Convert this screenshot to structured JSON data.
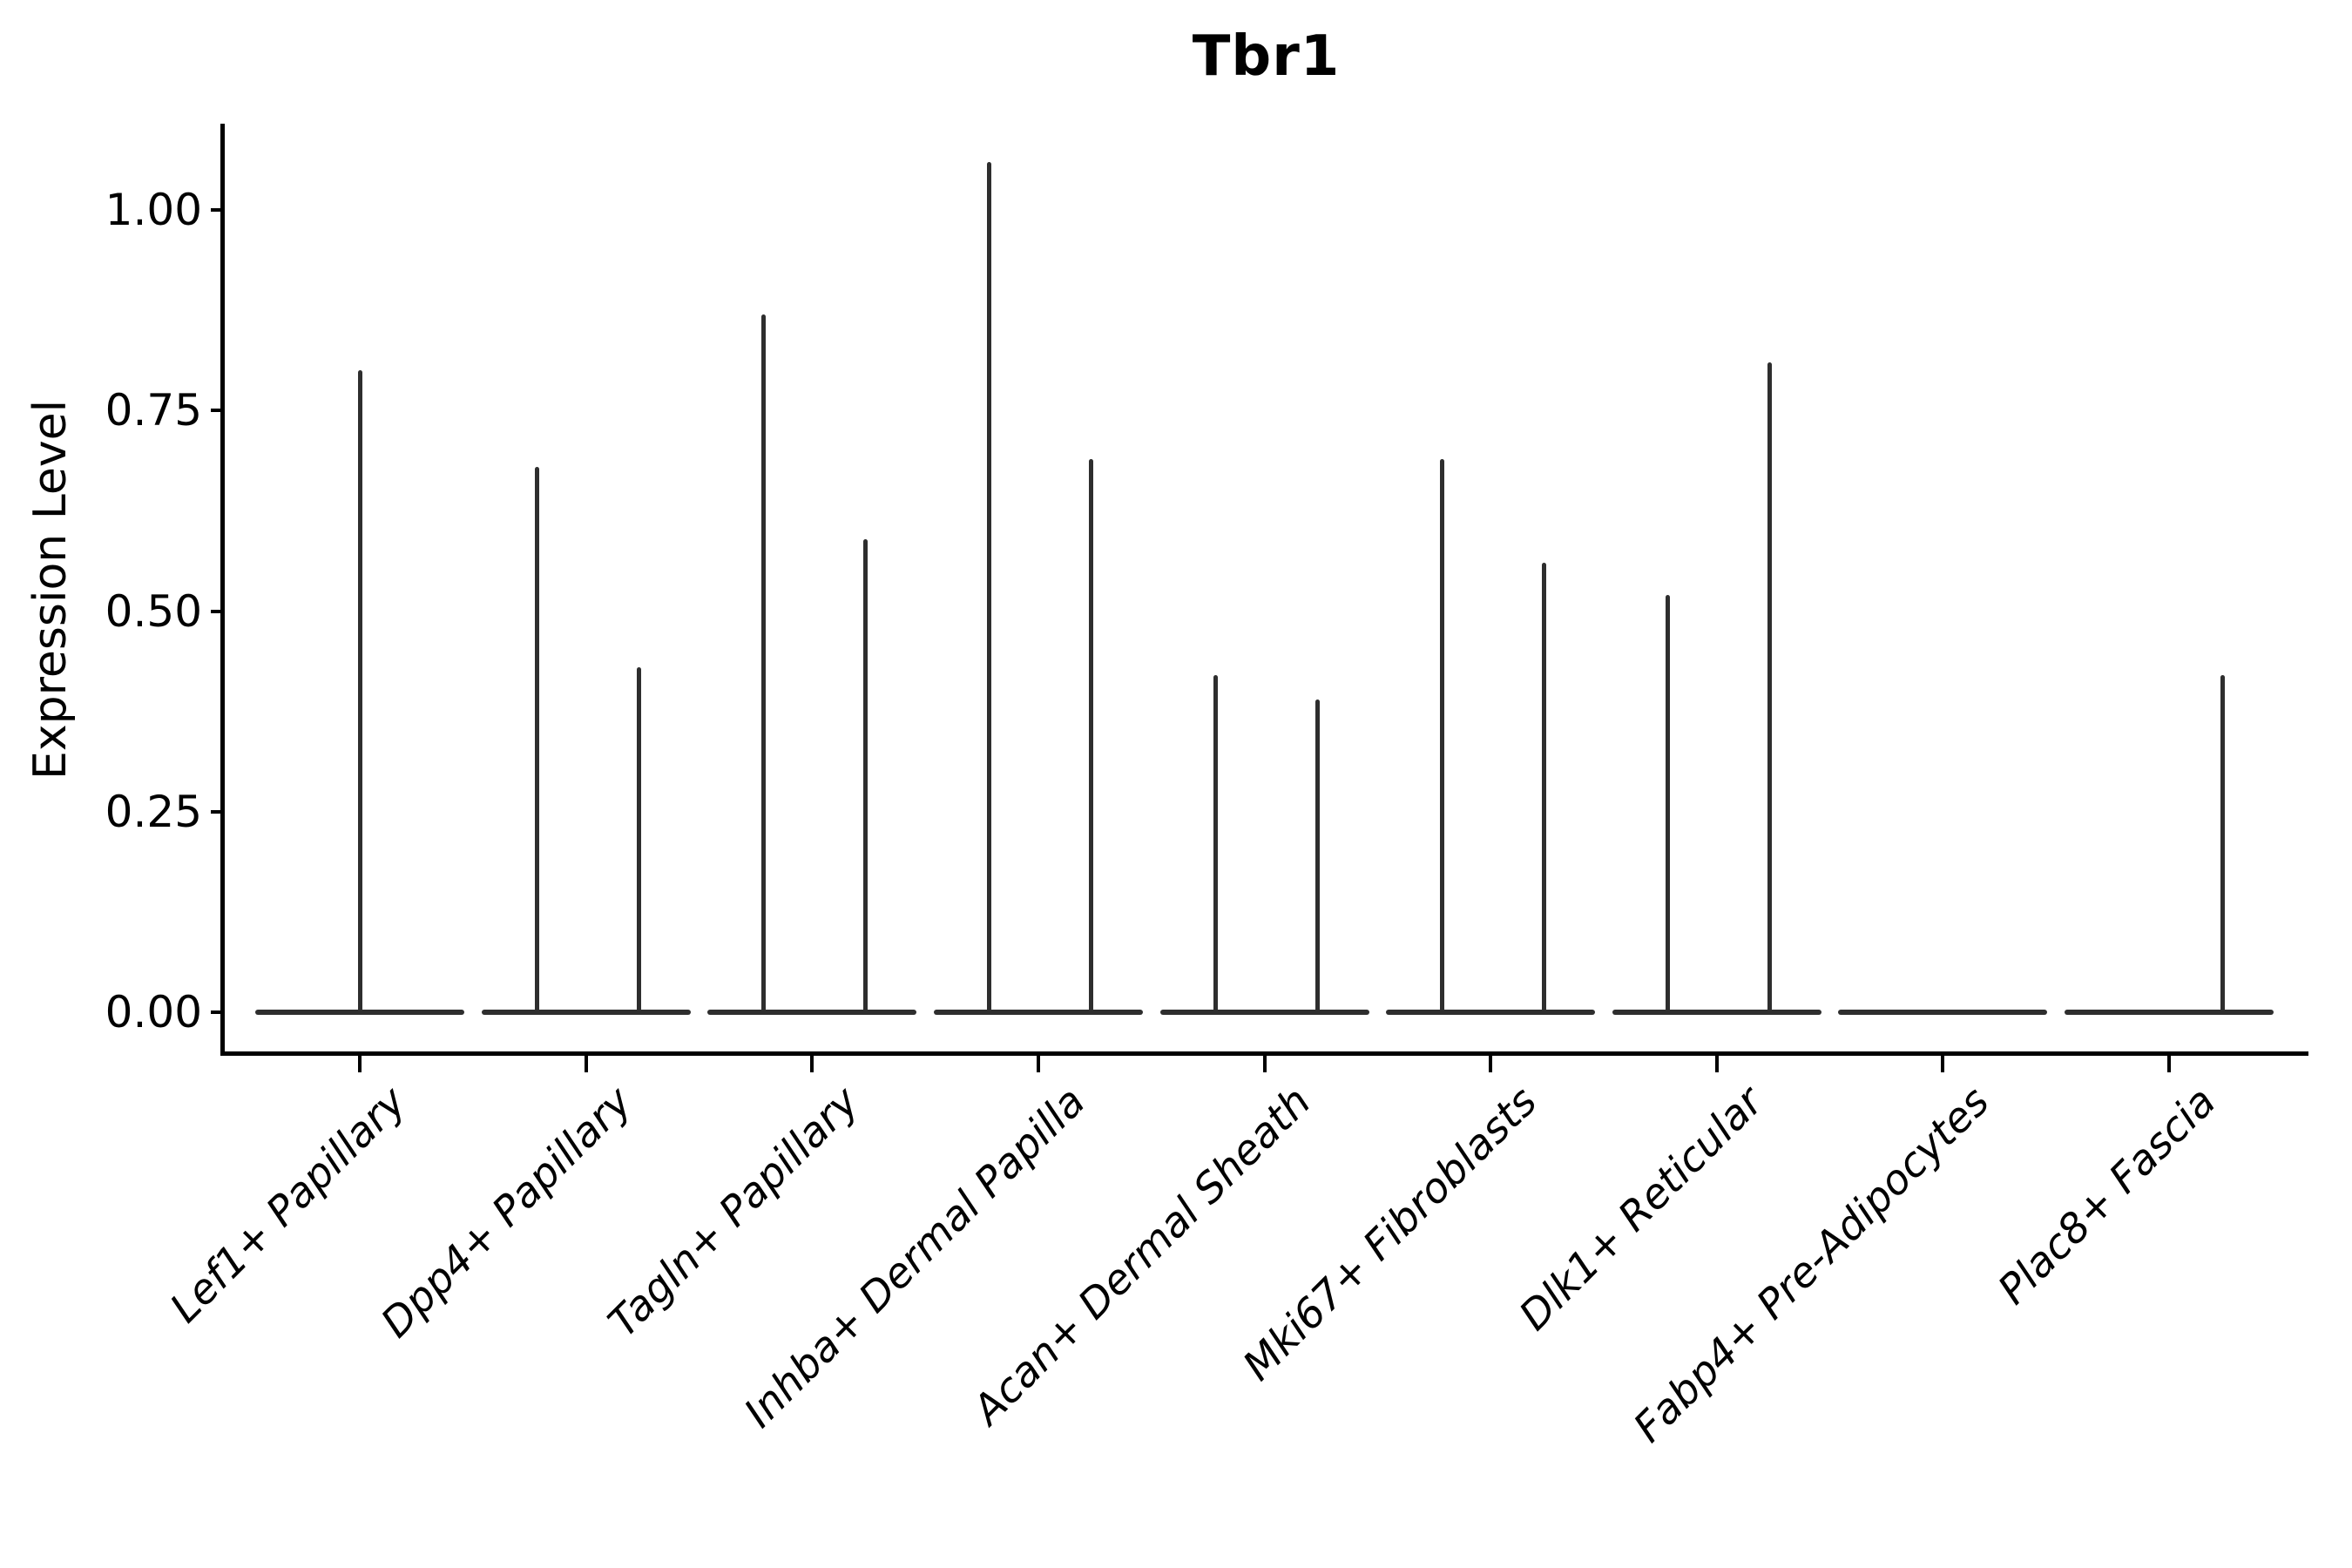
{
  "chart_data": {
    "type": "violin",
    "title": "Tbr1",
    "ylabel": "Expression Level",
    "xlabel": "",
    "y_ticks": [
      "1.00",
      "0.75",
      "0.50",
      "0.25",
      "0.00"
    ],
    "y_tick_values": [
      1.0,
      0.75,
      0.5,
      0.25,
      0.0
    ],
    "ylim": [
      -0.05,
      1.11
    ],
    "grid": false,
    "legend": "none",
    "categories": [
      "Lef1+ Papillary",
      "Dpp4+ Papillary",
      "Tagln+ Papillary",
      "Inhba+ Dermal Papilla",
      "Acan+ Dermal Sheath",
      "Mki67+ Fibroblasts",
      "Dlk1+ Reticular",
      "Fabp4+ Pre-Adipocytes",
      "Plac8+ Fascia"
    ],
    "violins": [
      {
        "category": "Lef1+ Papillary",
        "baseline_value": 0.0,
        "spikes": [
          {
            "side": "center",
            "value": 0.8
          }
        ]
      },
      {
        "category": "Dpp4+ Papillary",
        "baseline_value": 0.0,
        "spikes": [
          {
            "side": "left",
            "value": 0.68
          },
          {
            "side": "right",
            "value": 0.43
          }
        ]
      },
      {
        "category": "Tagln+ Papillary",
        "baseline_value": 0.0,
        "spikes": [
          {
            "side": "left",
            "value": 0.87
          },
          {
            "side": "right",
            "value": 0.59
          }
        ]
      },
      {
        "category": "Inhba+ Dermal Papilla",
        "baseline_value": 0.0,
        "spikes": [
          {
            "side": "left",
            "value": 1.06
          },
          {
            "side": "right",
            "value": 0.69
          }
        ]
      },
      {
        "category": "Acan+ Dermal Sheath",
        "baseline_value": 0.0,
        "spikes": [
          {
            "side": "left",
            "value": 0.42
          },
          {
            "side": "right",
            "value": 0.39
          }
        ]
      },
      {
        "category": "Mki67+ Fibroblasts",
        "baseline_value": 0.0,
        "spikes": [
          {
            "side": "left",
            "value": 0.69
          },
          {
            "side": "right",
            "value": 0.56
          }
        ]
      },
      {
        "category": "Dlk1+ Reticular",
        "baseline_value": 0.0,
        "spikes": [
          {
            "side": "left",
            "value": 0.52
          },
          {
            "side": "right",
            "value": 0.81
          }
        ]
      },
      {
        "category": "Fabp4+ Pre-Adipocytes",
        "baseline_value": 0.0,
        "spikes": []
      },
      {
        "category": "Plac8+ Fascia",
        "baseline_value": 0.0,
        "spikes": [
          {
            "side": "right",
            "value": 0.42
          }
        ]
      }
    ],
    "colors": {
      "violin": "#2e2e2e",
      "spine": "#000000",
      "text": "#000000"
    }
  }
}
